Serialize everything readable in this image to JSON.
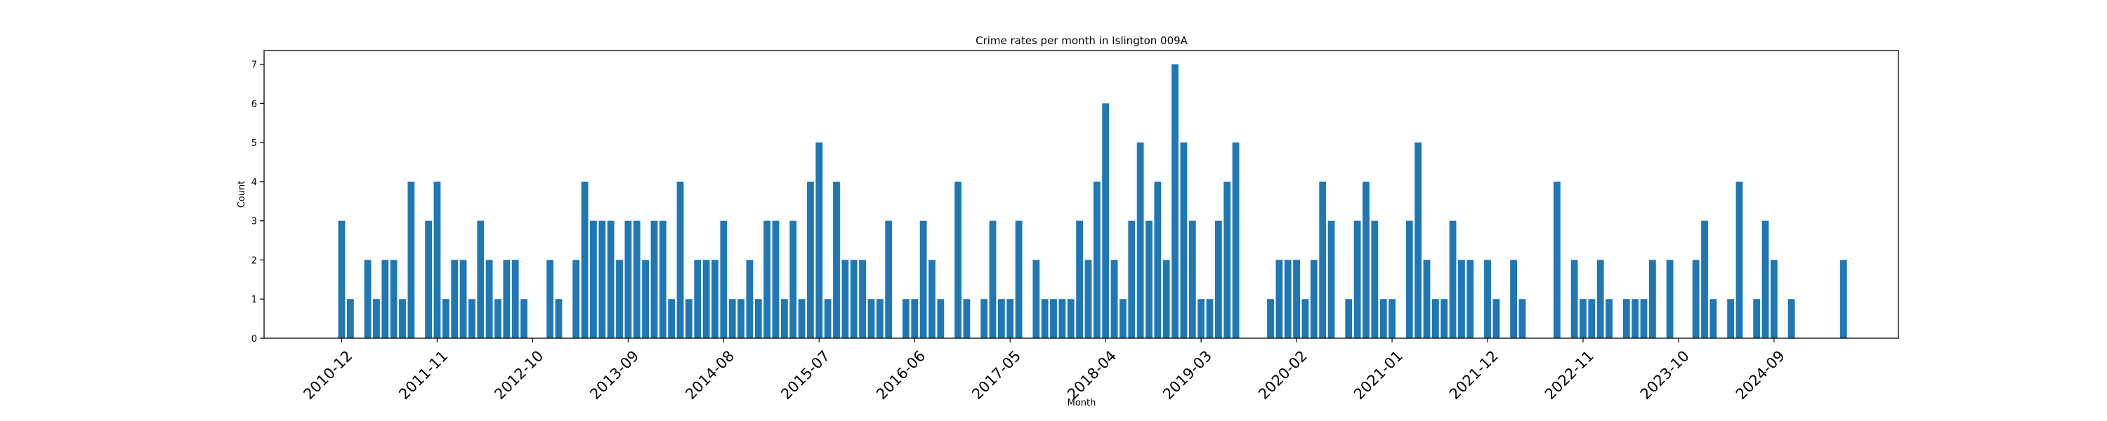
{
  "chart_data": {
    "type": "bar",
    "title": "Crime rates per month in Islington 009A",
    "xlabel": "Month",
    "ylabel": "Count",
    "ylim": [
      0,
      7.35
    ],
    "yticks": [
      0,
      1,
      2,
      3,
      4,
      5,
      6,
      7
    ],
    "xticks": [
      "2010-12",
      "2011-11",
      "2012-10",
      "2013-09",
      "2014-08",
      "2015-07",
      "2016-06",
      "2017-05",
      "2018-04",
      "2019-03",
      "2020-02",
      "2021-01",
      "2021-12",
      "2022-11",
      "2023-10",
      "2024-09"
    ],
    "bar_color": "#1f77b4",
    "grid": false,
    "categories": [
      "2010-12",
      "2011-01",
      "2011-02",
      "2011-03",
      "2011-04",
      "2011-05",
      "2011-06",
      "2011-07",
      "2011-08",
      "2011-09",
      "2011-10",
      "2011-11",
      "2011-12",
      "2012-01",
      "2012-02",
      "2012-03",
      "2012-04",
      "2012-05",
      "2012-06",
      "2012-07",
      "2012-08",
      "2012-09",
      "2012-10",
      "2012-11",
      "2012-12",
      "2013-01",
      "2013-02",
      "2013-03",
      "2013-04",
      "2013-05",
      "2013-06",
      "2013-07",
      "2013-08",
      "2013-09",
      "2013-10",
      "2013-11",
      "2013-12",
      "2014-01",
      "2014-02",
      "2014-03",
      "2014-04",
      "2014-05",
      "2014-06",
      "2014-07",
      "2014-08",
      "2014-09",
      "2014-10",
      "2014-11",
      "2014-12",
      "2015-01",
      "2015-02",
      "2015-03",
      "2015-04",
      "2015-05",
      "2015-06",
      "2015-07",
      "2015-08",
      "2015-09",
      "2015-10",
      "2015-11",
      "2015-12",
      "2016-01",
      "2016-02",
      "2016-03",
      "2016-04",
      "2016-05",
      "2016-06",
      "2016-07",
      "2016-08",
      "2016-09",
      "2016-10",
      "2016-11",
      "2016-12",
      "2017-01",
      "2017-02",
      "2017-03",
      "2017-04",
      "2017-05",
      "2017-06",
      "2017-07",
      "2017-08",
      "2017-09",
      "2017-10",
      "2017-11",
      "2017-12",
      "2018-01",
      "2018-02",
      "2018-03",
      "2018-04",
      "2018-05",
      "2018-06",
      "2018-07",
      "2018-08",
      "2018-09",
      "2018-10",
      "2018-11",
      "2018-12",
      "2019-01",
      "2019-02",
      "2019-03",
      "2019-04",
      "2019-05",
      "2019-06",
      "2019-07",
      "2019-08",
      "2019-09",
      "2019-10",
      "2019-11",
      "2019-12",
      "2020-01",
      "2020-02",
      "2020-03",
      "2020-04",
      "2020-05",
      "2020-06",
      "2020-07",
      "2020-08",
      "2020-09",
      "2020-10",
      "2020-11",
      "2020-12",
      "2021-01",
      "2021-02",
      "2021-03",
      "2021-04",
      "2021-05",
      "2021-06",
      "2021-07",
      "2021-08",
      "2021-09",
      "2021-10",
      "2021-11",
      "2021-12",
      "2022-01",
      "2022-02",
      "2022-03",
      "2022-04",
      "2022-05",
      "2022-06",
      "2022-07",
      "2022-08",
      "2022-09",
      "2022-10",
      "2022-11",
      "2022-12",
      "2023-01",
      "2023-02",
      "2023-03",
      "2023-04",
      "2023-05",
      "2023-06",
      "2023-07",
      "2023-08",
      "2023-09",
      "2023-10",
      "2023-11",
      "2023-12",
      "2024-01",
      "2024-02",
      "2024-03",
      "2024-04",
      "2024-05",
      "2024-06",
      "2024-07",
      "2024-08",
      "2024-09",
      "2024-10",
      "2024-11",
      "2024-12",
      "2025-01",
      "2025-02",
      "2025-03",
      "2025-04",
      "2025-05"
    ],
    "values": [
      3,
      1,
      0,
      2,
      1,
      2,
      2,
      1,
      4,
      0,
      3,
      4,
      1,
      2,
      2,
      1,
      3,
      2,
      1,
      2,
      2,
      1,
      0,
      0,
      2,
      1,
      0,
      2,
      4,
      3,
      3,
      3,
      2,
      3,
      3,
      2,
      3,
      3,
      1,
      4,
      1,
      2,
      2,
      2,
      3,
      1,
      1,
      2,
      1,
      3,
      3,
      1,
      3,
      1,
      4,
      5,
      1,
      4,
      2,
      2,
      2,
      1,
      1,
      3,
      0,
      1,
      1,
      3,
      2,
      1,
      0,
      4,
      1,
      0,
      1,
      3,
      1,
      1,
      3,
      0,
      2,
      1,
      1,
      1,
      1,
      3,
      2,
      4,
      6,
      2,
      1,
      3,
      5,
      3,
      4,
      2,
      7,
      5,
      3,
      1,
      1,
      3,
      4,
      5,
      0,
      0,
      0,
      1,
      2,
      2,
      2,
      1,
      2,
      4,
      3,
      0,
      1,
      3,
      4,
      3,
      1,
      1,
      0,
      3,
      5,
      2,
      1,
      1,
      3,
      2,
      2,
      0,
      2,
      1,
      0,
      2,
      1,
      0,
      0,
      0,
      4,
      0,
      2,
      1,
      1,
      2,
      1,
      0,
      1,
      1,
      1,
      2,
      0,
      2,
      0,
      0,
      2,
      3,
      1,
      0,
      1,
      4,
      0,
      1,
      3,
      2,
      0,
      1,
      0,
      0,
      0,
      0,
      0,
      2
    ]
  }
}
